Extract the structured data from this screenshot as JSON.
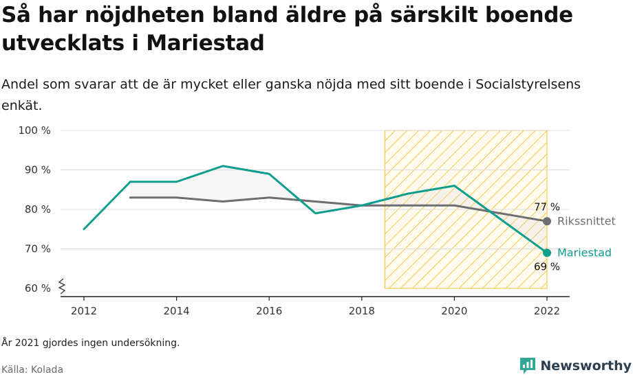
{
  "title": "Så har nöjdheten bland äldre på särskilt boende utvecklats i Mariestad",
  "subtitle": "Andel som svarar att de är mycket eller ganska nöjda med sitt boende i Socialstyrelsens enkät.",
  "note": "År 2021 gjordes ingen undersökning.",
  "source": "Källa: Kolada",
  "brand": {
    "name": "Newsworthy",
    "icon": "newsworthy-logo-icon"
  },
  "colors": {
    "mariestad": "#0e9e8e",
    "riket": "#6e6e72",
    "highlight": "#f5c84c",
    "grid": "#dcdcdc",
    "axis": "#333333"
  },
  "chart_data": {
    "type": "line",
    "y_unit": "%",
    "ylim": [
      60,
      100
    ],
    "y_ticks": [
      100,
      90,
      80,
      70,
      60
    ],
    "y_tick_labels": [
      "100 %",
      "90 %",
      "80 %",
      "70 %",
      "60 %"
    ],
    "y_axis_break": true,
    "x_range": [
      2012,
      2022
    ],
    "x_ticks": [
      "2012",
      "2014",
      "2016",
      "2018",
      "2020",
      "2022"
    ],
    "grid": true,
    "highlight_range": [
      2018.5,
      2022
    ],
    "series": [
      {
        "name": "Mariestad",
        "color": "#0e9e8e",
        "x": [
          2012,
          2013,
          2014,
          2015,
          2016,
          2017,
          2018,
          2019,
          2020,
          2022
        ],
        "y": [
          75,
          87,
          87,
          91,
          89,
          79,
          81,
          84,
          86,
          69
        ],
        "end_label": "69 %"
      },
      {
        "name": "Rikssnittet",
        "color": "#6e6e72",
        "x": [
          2013,
          2014,
          2015,
          2016,
          2017,
          2018,
          2019,
          2020,
          2022
        ],
        "y": [
          83,
          83,
          82,
          83,
          82,
          81,
          81,
          81,
          77
        ],
        "end_label": "77 %"
      }
    ]
  }
}
